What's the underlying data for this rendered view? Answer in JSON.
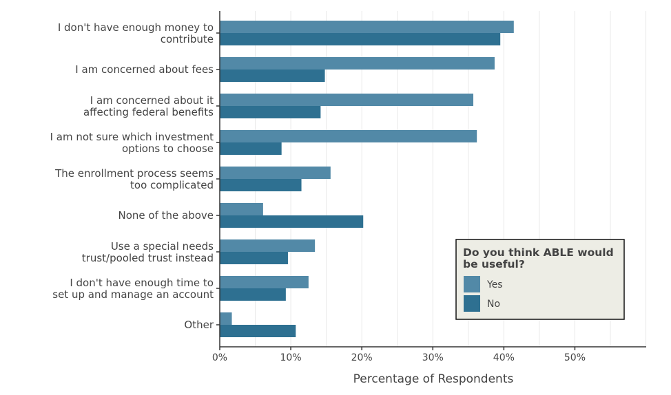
{
  "chart_data": {
    "type": "bar",
    "orientation": "horizontal",
    "categories": [
      [
        "I don't have enough money to",
        "contribute"
      ],
      [
        "I am concerned about fees"
      ],
      [
        "I am concerned about it",
        "affecting federal benefits"
      ],
      [
        "I am not sure which investment",
        "options to choose"
      ],
      [
        "The enrollment process seems",
        "too complicated"
      ],
      [
        "None of the above"
      ],
      [
        "Use a special needs",
        "trust/pooled trust instead"
      ],
      [
        "I don't have enough time to",
        "set up and manage an account"
      ],
      [
        "Other"
      ]
    ],
    "series": [
      {
        "name": "Yes",
        "color": "#5289a7",
        "values": [
          41.4,
          38.7,
          35.7,
          36.2,
          15.6,
          6.1,
          13.4,
          12.5,
          1.7
        ]
      },
      {
        "name": "No",
        "color": "#2e7091",
        "values": [
          39.5,
          14.8,
          14.2,
          8.7,
          11.5,
          20.2,
          9.6,
          9.3,
          10.7
        ]
      }
    ],
    "xlabel": "Percentage of Respondents",
    "ylabel": "",
    "xlim": [
      0,
      60
    ],
    "xticks": [
      0,
      10,
      20,
      30,
      40,
      50
    ],
    "tick_format": "percent",
    "grid": "vertical",
    "legend": {
      "title": "Do you think ABLE would be useful?",
      "title_lines": [
        "Do you think ABLE would",
        "be useful?"
      ],
      "position": "bottom-right"
    }
  }
}
